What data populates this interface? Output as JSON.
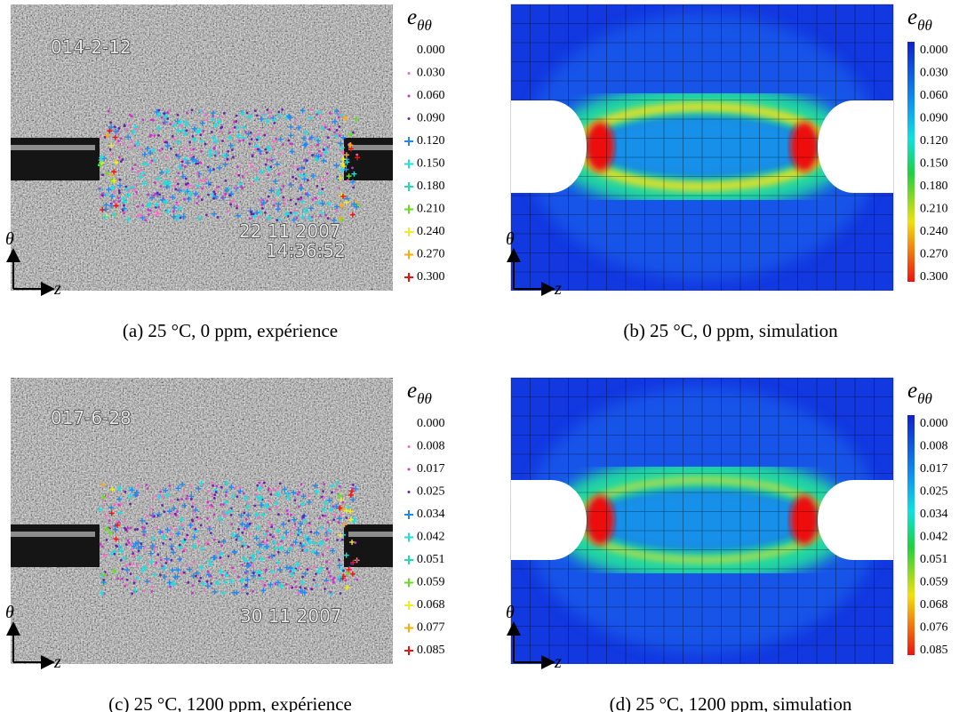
{
  "panels": [
    {
      "caption": "(a) 25 °C, 0 ppm, expérience",
      "overlay": [
        "014-2-12",
        "22 11 2007",
        "14:36:52"
      ],
      "legend": {
        "symbol": "e",
        "subscript": "θθ",
        "labels": [
          "0.000",
          "0.030",
          "0.060",
          "0.090",
          "0.120",
          "0.150",
          "0.180",
          "0.210",
          "0.240",
          "0.270",
          "0.300"
        ]
      },
      "axes": {
        "vertical": "θ",
        "horizontal": "z"
      }
    },
    {
      "caption": "(b) 25 °C, 0 ppm, simulation",
      "legend": {
        "symbol": "e",
        "subscript": "θθ",
        "labels": [
          "0.000",
          "0.030",
          "0.060",
          "0.090",
          "0.120",
          "0.150",
          "0.180",
          "0.210",
          "0.240",
          "0.270",
          "0.300"
        ]
      },
      "axes": {
        "vertical": "θ",
        "horizontal": "z"
      }
    },
    {
      "caption": "(c) 25 °C, 1200 ppm, expérience",
      "overlay": [
        "017-6-28",
        "30 11 2007"
      ],
      "legend": {
        "symbol": "e",
        "subscript": "θθ",
        "labels": [
          "0.000",
          "0.008",
          "0.017",
          "0.025",
          "0.034",
          "0.042",
          "0.051",
          "0.059",
          "0.068",
          "0.077",
          "0.085"
        ]
      },
      "axes": {
        "vertical": "θ",
        "horizontal": "z"
      }
    },
    {
      "caption": "(d) 25 °C, 1200 ppm, simulation",
      "legend": {
        "symbol": "e",
        "subscript": "θθ",
        "labels": [
          "0.000",
          "0.008",
          "0.017",
          "0.025",
          "0.034",
          "0.042",
          "0.051",
          "0.059",
          "0.068",
          "0.076",
          "0.085"
        ]
      },
      "axes": {
        "vertical": "θ",
        "horizontal": "z"
      }
    }
  ]
}
